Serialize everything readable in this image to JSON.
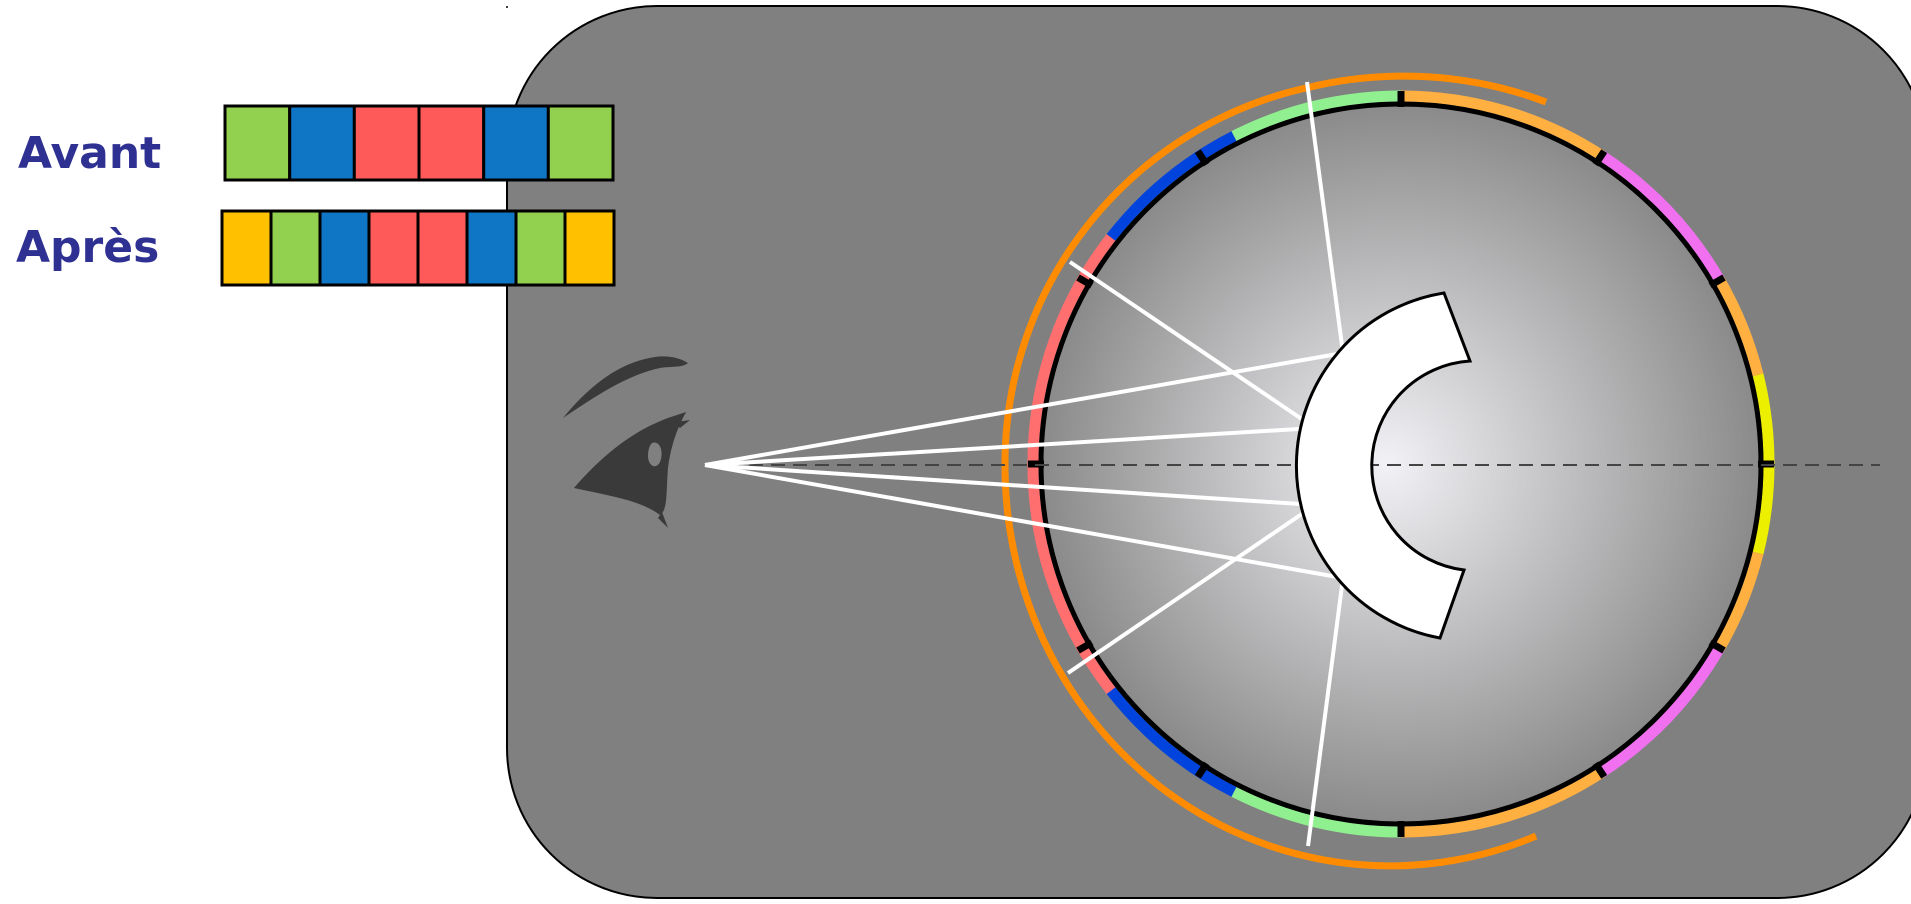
{
  "rows": {
    "before": {
      "label": "Avant",
      "colors": [
        "#92d050",
        "#0f75c5",
        "#ff5a5a",
        "#ff5a5a",
        "#0f75c5",
        "#92d050"
      ]
    },
    "after": {
      "label": "Après",
      "colors": [
        "#ffc000",
        "#92d050",
        "#0f75c5",
        "#ff5a5a",
        "#ff5a5a",
        "#0f75c5",
        "#92d050",
        "#ffc000"
      ]
    }
  },
  "palette": {
    "label_text": "#2e3192",
    "panel": "#808080",
    "outline": "#000000",
    "orange_arc": "#ff8c00",
    "rays": "#ffffff",
    "eye": "#3a3a3a",
    "sphere_center": "#f2f2f6",
    "sphere_edge": "#8a8a8a"
  },
  "rim_segments": [
    {
      "name": "green",
      "color": "#90f090"
    },
    {
      "name": "blue",
      "color": "#0044dd"
    },
    {
      "name": "red",
      "color": "#ff6f6f"
    },
    {
      "name": "orange",
      "color": "#ffb040"
    },
    {
      "name": "magenta",
      "color": "#f070f0"
    },
    {
      "name": "yellow",
      "color": "#ecf000"
    }
  ],
  "icons": {
    "eye": "eye-icon",
    "mirror": "concave-mirror-icon"
  }
}
